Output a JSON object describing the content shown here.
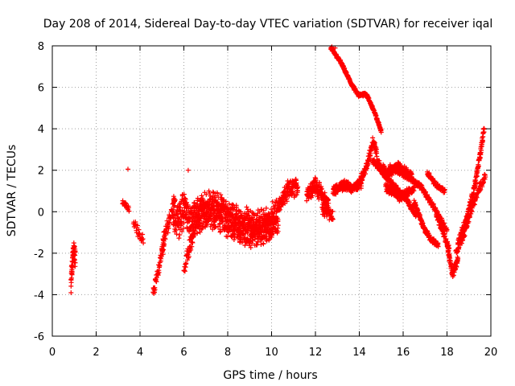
{
  "chart_data": {
    "type": "scatter",
    "title": "Day 208 of 2014, Sidereal Day-to-day VTEC variation (SDTVAR) for receiver iqal",
    "xlabel": "GPS time / hours",
    "ylabel": "SDTVAR / TECUs",
    "xlim": [
      0,
      20
    ],
    "ylim": [
      -6,
      8
    ],
    "xticks": [
      0,
      2,
      4,
      6,
      8,
      10,
      12,
      14,
      16,
      18,
      20
    ],
    "yticks": [
      -6,
      -4,
      -2,
      0,
      2,
      4,
      6,
      8
    ],
    "grid": true,
    "marker": "+",
    "colors": {
      "series": "#ff0000",
      "grid": "#a0a0a0"
    },
    "segments": [
      {
        "name": "seg-0.8",
        "x0": 0.85,
        "x1": 1.05,
        "n": 60,
        "shape": [
          [
            0,
            -3.8
          ],
          [
            0.3,
            -2.5
          ],
          [
            0.6,
            -1.8
          ],
          [
            1,
            -2.2
          ]
        ],
        "noise": 0.9
      },
      {
        "name": "seg-3.2",
        "x0": 3.2,
        "x1": 3.5,
        "n": 20,
        "shape": [
          [
            0,
            0.5
          ],
          [
            1,
            0.1
          ]
        ],
        "noise": 0.25
      },
      {
        "name": "seg-3.8",
        "x0": 3.7,
        "x1": 4.15,
        "n": 25,
        "shape": [
          [
            0,
            -0.5
          ],
          [
            0.5,
            -1.0
          ],
          [
            1,
            -1.4
          ]
        ],
        "noise": 0.4
      },
      {
        "name": "seg-4.6",
        "x0": 4.6,
        "x1": 5.1,
        "n": 50,
        "shape": [
          [
            0,
            -3.9
          ],
          [
            0.3,
            -3.2
          ],
          [
            0.6,
            -2.5
          ],
          [
            1,
            -1.5
          ]
        ],
        "noise": 0.45
      },
      {
        "name": "seg-5.0",
        "x0": 5.0,
        "x1": 5.6,
        "n": 60,
        "shape": [
          [
            0,
            -1.6
          ],
          [
            0.5,
            -0.5
          ],
          [
            1,
            0.6
          ]
        ],
        "noise": 0.6
      },
      {
        "name": "seg-5.5",
        "x0": 5.5,
        "x1": 6.4,
        "n": 150,
        "shape": [
          [
            0,
            0.2
          ],
          [
            0.3,
            -0.5
          ],
          [
            0.6,
            0.2
          ],
          [
            1,
            -1.0
          ]
        ],
        "noise": 1.4
      },
      {
        "name": "seg-6.0",
        "x0": 6.0,
        "x1": 6.5,
        "n": 40,
        "shape": [
          [
            0,
            -2.8
          ],
          [
            0.5,
            -1.8
          ],
          [
            1,
            -0.8
          ]
        ],
        "noise": 0.6
      },
      {
        "name": "seg-6.4",
        "x0": 6.4,
        "x1": 10.3,
        "n": 900,
        "shape": [
          [
            0,
            -0.2
          ],
          [
            0.25,
            0.1
          ],
          [
            0.5,
            -0.6
          ],
          [
            0.75,
            -0.9
          ],
          [
            1,
            -0.3
          ]
        ],
        "noise": 1.35
      },
      {
        "name": "seg-10.3",
        "x0": 10.3,
        "x1": 11.2,
        "n": 120,
        "shape": [
          [
            0,
            0.2
          ],
          [
            0.5,
            1.0
          ],
          [
            1,
            1.2
          ]
        ],
        "noise": 0.7
      },
      {
        "name": "seg-11.6",
        "x0": 11.6,
        "x1": 12.6,
        "n": 160,
        "shape": [
          [
            0,
            0.9
          ],
          [
            0.4,
            1.3
          ],
          [
            0.8,
            0.6
          ],
          [
            1,
            0.3
          ]
        ],
        "noise": 0.6
      },
      {
        "name": "seg-12.3",
        "x0": 12.3,
        "x1": 12.8,
        "n": 40,
        "shape": [
          [
            0,
            0.2
          ],
          [
            1,
            -0.3
          ]
        ],
        "noise": 0.5
      },
      {
        "name": "seg-12.8",
        "x0": 12.8,
        "x1": 14.1,
        "n": 180,
        "shape": [
          [
            0,
            1.0
          ],
          [
            0.4,
            1.3
          ],
          [
            0.7,
            1.1
          ],
          [
            1,
            1.4
          ]
        ],
        "noise": 0.35
      },
      {
        "name": "seg-13.9",
        "x0": 13.9,
        "x1": 14.8,
        "n": 120,
        "shape": [
          [
            0,
            1.2
          ],
          [
            0.5,
            2.2
          ],
          [
            0.8,
            3.4
          ],
          [
            1,
            2.8
          ]
        ],
        "noise": 0.35
      },
      {
        "name": "seg-14.8",
        "x0": 14.8,
        "x1": 16.4,
        "n": 200,
        "shape": [
          [
            0,
            2.4
          ],
          [
            0.3,
            1.8
          ],
          [
            0.6,
            2.2
          ],
          [
            1,
            1.7
          ]
        ],
        "noise": 0.35
      },
      {
        "name": "seg-15.2",
        "x0": 15.2,
        "x1": 16.5,
        "n": 150,
        "shape": [
          [
            0,
            1.2
          ],
          [
            0.5,
            0.7
          ],
          [
            1,
            1.1
          ]
        ],
        "noise": 0.3
      },
      {
        "name": "seg-12.7",
        "x0": 12.7,
        "x1": 15.0,
        "n": 320,
        "shape": [
          [
            0,
            7.9
          ],
          [
            0.2,
            7.2
          ],
          [
            0.4,
            6.2
          ],
          [
            0.55,
            5.6
          ],
          [
            0.7,
            5.7
          ],
          [
            0.85,
            4.9
          ],
          [
            1,
            3.9
          ]
        ],
        "noise": 0.12
      },
      {
        "name": "seg-14.6",
        "x0": 14.6,
        "x1": 16.6,
        "n": 220,
        "shape": [
          [
            0,
            2.5
          ],
          [
            0.3,
            1.7
          ],
          [
            0.6,
            1.0
          ],
          [
            0.8,
            0.5
          ],
          [
            1,
            -0.2
          ]
        ],
        "noise": 0.2
      },
      {
        "name": "seg-16.5",
        "x0": 16.5,
        "x1": 17.6,
        "n": 150,
        "shape": [
          [
            0,
            0.5
          ],
          [
            0.4,
            -0.8
          ],
          [
            0.75,
            -1.4
          ],
          [
            1,
            -1.6
          ]
        ],
        "noise": 0.2
      },
      {
        "name": "seg-15.4",
        "x0": 15.4,
        "x1": 18.0,
        "n": 250,
        "shape": [
          [
            0,
            2.2
          ],
          [
            0.3,
            1.7
          ],
          [
            0.55,
            1.2
          ],
          [
            0.75,
            0.3
          ],
          [
            1,
            -0.9
          ]
        ],
        "noise": 0.2
      },
      {
        "name": "seg-17.1",
        "x0": 17.1,
        "x1": 17.9,
        "n": 70,
        "shape": [
          [
            0,
            1.9
          ],
          [
            0.5,
            1.3
          ],
          [
            1,
            1.0
          ]
        ],
        "noise": 0.2
      },
      {
        "name": "seg-17.5",
        "x0": 17.5,
        "x1": 18.1,
        "n": 60,
        "shape": [
          [
            0,
            -0.1
          ],
          [
            1,
            -1.8
          ]
        ],
        "noise": 0.25
      },
      {
        "name": "seg-18.0",
        "x0": 18.0,
        "x1": 18.5,
        "n": 80,
        "shape": [
          [
            0,
            -1.6
          ],
          [
            0.5,
            -3.0
          ],
          [
            1,
            -2.3
          ]
        ],
        "noise": 0.3
      },
      {
        "name": "seg-18.5",
        "x0": 18.5,
        "x1": 19.7,
        "n": 180,
        "shape": [
          [
            0,
            -1.5
          ],
          [
            0.3,
            -0.5
          ],
          [
            0.6,
            1.0
          ],
          [
            0.85,
            2.8
          ],
          [
            1,
            4.1
          ]
        ],
        "noise": 0.35
      },
      {
        "name": "seg-18.4",
        "x0": 18.4,
        "x1": 19.75,
        "n": 120,
        "shape": [
          [
            0,
            -2.0
          ],
          [
            0.3,
            -1.0
          ],
          [
            0.6,
            0.4
          ],
          [
            1,
            1.8
          ]
        ],
        "noise": 0.3
      }
    ],
    "outliers": [
      {
        "x": 3.45,
        "y": 2.05
      },
      {
        "x": 6.2,
        "y": 2.0
      },
      {
        "x": 12.75,
        "y": 7.95
      },
      {
        "x": 12.9,
        "y": 7.9
      }
    ]
  }
}
